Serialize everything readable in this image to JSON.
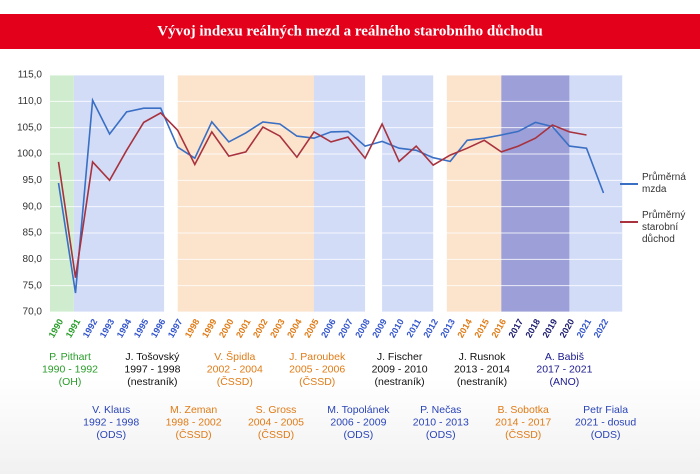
{
  "chart_data": {
    "type": "line",
    "title": "Vývoj indexu reálných mezd a reálného starobního důchodu",
    "categories": [
      "1990",
      "1991",
      "1992",
      "1993",
      "1994",
      "1995",
      "1996",
      "1997",
      "1998",
      "1999",
      "2000",
      "2001",
      "2002",
      "2003",
      "2004",
      "2005",
      "2006",
      "2007",
      "2008",
      "2009",
      "2010",
      "2011",
      "2012",
      "2013",
      "2014",
      "2015",
      "2016",
      "2017",
      "2018",
      "2019",
      "2020",
      "2021",
      "2022"
    ],
    "category_colors": [
      "#2a9d2a",
      "#2a9d2a",
      "#3355cc",
      "#3355cc",
      "#3355cc",
      "#3355cc",
      "#3355cc",
      "#3355cc",
      "#e07b16",
      "#e07b16",
      "#e07b16",
      "#e07b16",
      "#e07b16",
      "#e07b16",
      "#e07b16",
      "#e07b16",
      "#3355cc",
      "#3355cc",
      "#3355cc",
      "#3355cc",
      "#3355cc",
      "#3355cc",
      "#3355cc",
      "#3355cc",
      "#e07b16",
      "#e07b16",
      "#e07b16",
      "#1a1a6e",
      "#1a1a6e",
      "#1a1a6e",
      "#1a1a6e",
      "#3355cc",
      "#3355cc"
    ],
    "series": [
      {
        "name": "Průměrná mzda",
        "color": "#3a6fc4",
        "values": [
          94.5,
          73.6,
          110.2,
          103.8,
          108.0,
          108.7,
          108.7,
          101.3,
          99.2,
          106.1,
          102.3,
          104.0,
          106.1,
          105.7,
          103.4,
          103.0,
          104.2,
          104.3,
          101.5,
          102.4,
          101.1,
          100.7,
          99.3,
          98.6,
          102.6,
          103.0,
          103.6,
          104.3,
          106.0,
          105.2,
          101.5,
          101.1,
          92.6
        ]
      },
      {
        "name": "Průměrný starobní důchod",
        "color": "#a8323e",
        "values": [
          98.5,
          76.5,
          98.5,
          95.0,
          100.7,
          106.0,
          107.8,
          104.5,
          98.0,
          104.2,
          99.6,
          100.4,
          105.1,
          103.4,
          99.4,
          104.2,
          102.3,
          103.2,
          99.2,
          105.7,
          98.6,
          101.5,
          97.9,
          99.8,
          101.1,
          102.6,
          100.4,
          101.5,
          103.0,
          105.5,
          104.2,
          103.6,
          null
        ]
      }
    ],
    "ylim": [
      70,
      115
    ],
    "yticks": [
      {
        "value": 70,
        "label": "70,0"
      },
      {
        "value": 75,
        "label": "75,0"
      },
      {
        "value": 80,
        "label": "80,0"
      },
      {
        "value": 85,
        "label": "85,0"
      },
      {
        "value": 90,
        "label": "90,0"
      },
      {
        "value": 95,
        "label": "95,0"
      },
      {
        "value": 100,
        "label": "100,0"
      },
      {
        "value": 105,
        "label": "105,0"
      },
      {
        "value": 110,
        "label": "110,0"
      },
      {
        "value": 115,
        "label": "115,0"
      }
    ],
    "grid": true,
    "governments": [
      {
        "name": "P. Pithart",
        "period": "1990 - 1992",
        "party": "(OH)",
        "color": "#2a9d2a"
      },
      {
        "name": "V. Klaus",
        "period": "1992 - 1998",
        "party": "(ODS)",
        "color": "#2a44b8"
      },
      {
        "name": "J. Tošovský",
        "period": "1997 - 1998",
        "party": "(nestraník)",
        "color": "#111111"
      },
      {
        "name": "M. Zeman",
        "period": "1998 - 2002",
        "party": "(ČSSD)",
        "color": "#e07b16"
      },
      {
        "name": "V. Špidla",
        "period": "2002 - 2004",
        "party": "(ČSSD)",
        "color": "#e07b16"
      },
      {
        "name": "S. Gross",
        "period": "2004 - 2005",
        "party": "(ČSSD)",
        "color": "#e07b16"
      },
      {
        "name": "J. Paroubek",
        "period": "2005 - 2006",
        "party": "(ČSSD)",
        "color": "#e07b16"
      },
      {
        "name": "M. Topolánek",
        "period": "2006 - 2009",
        "party": "(ODS)",
        "color": "#2a44b8"
      },
      {
        "name": "J. Fischer",
        "period": "2009 - 2010",
        "party": "(nestraník)",
        "color": "#111111"
      },
      {
        "name": "P. Nečas",
        "period": "2010 - 2013",
        "party": "(ODS)",
        "color": "#2a44b8"
      },
      {
        "name": "J. Rusnok",
        "period": "2013 - 2014",
        "party": "(nestraník)",
        "color": "#111111"
      },
      {
        "name": "B. Sobotka",
        "period": "2014 - 2017",
        "party": "(ČSSD)",
        "color": "#e07b16"
      },
      {
        "name": "A. Babiš",
        "period": "2017 - 2021",
        "party": "(ANO)",
        "color": "#1a1a8e"
      },
      {
        "name": "Petr Fiala",
        "period": "2021 - dosud",
        "party": "(ODS)",
        "color": "#2a44b8"
      }
    ]
  }
}
